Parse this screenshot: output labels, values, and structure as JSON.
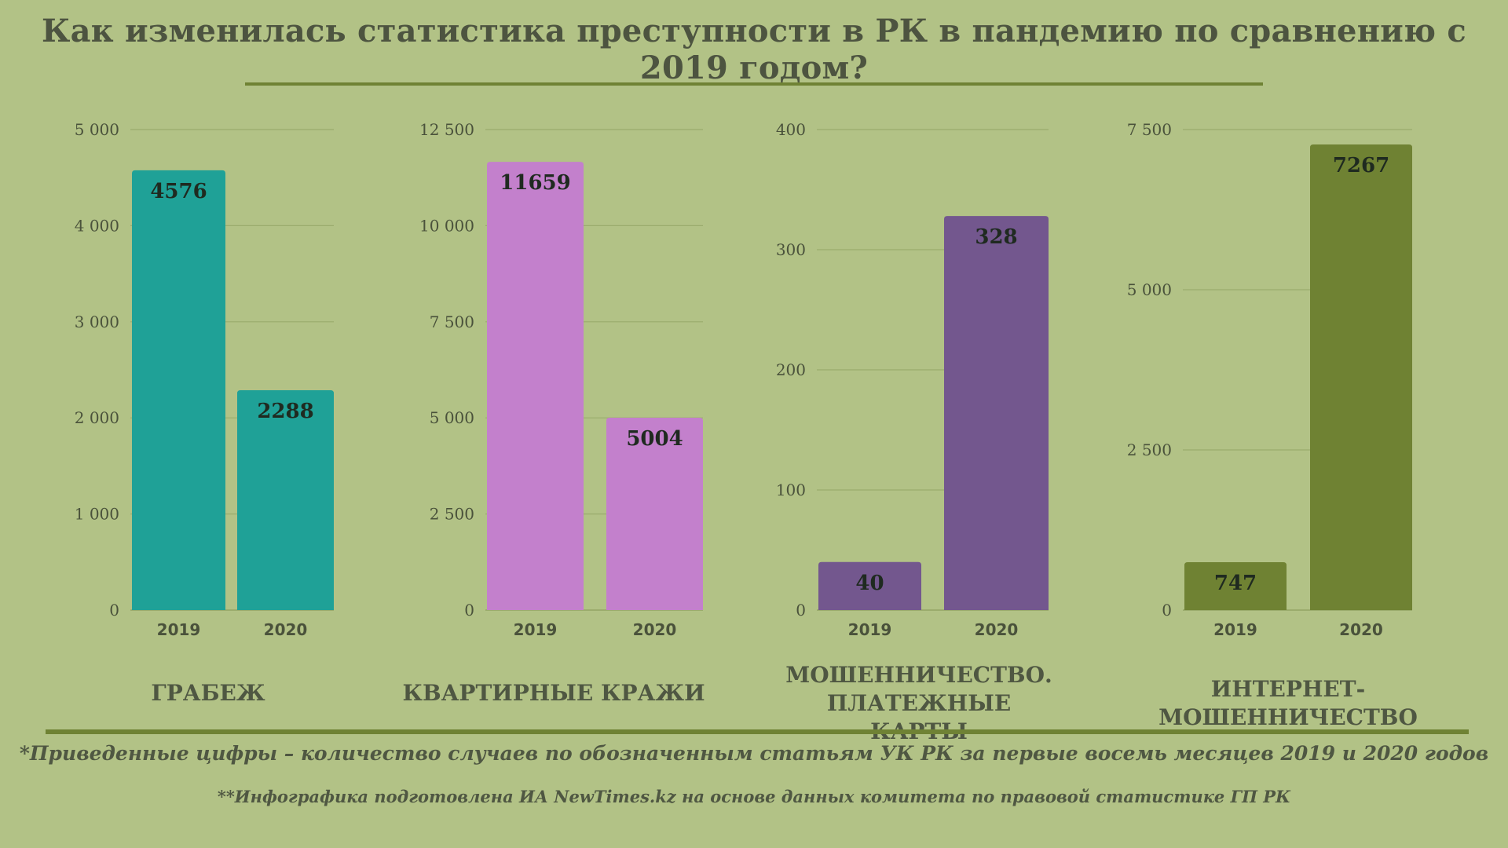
{
  "title": "Как изменилась статистика преступности в РК в пандемию по сравнению с 2019 годом?",
  "footnote_1": "*Приведенные цифры – количество случаев по обозначенным статьям УК РК за первые восемь месяцев 2019 и 2020 годов",
  "footnote_2": "**Инфографика подготовлена ИА NewTimes.kz на основе данных комитета по правовой статистике ГП РК",
  "chart_data": [
    {
      "type": "bar",
      "title": "ГРАБЕЖ",
      "categories": [
        "2019",
        "2020"
      ],
      "values": [
        4576,
        2288
      ],
      "ylim": [
        0,
        5000
      ],
      "yticks": [
        0,
        1000,
        2000,
        3000,
        4000,
        5000
      ],
      "ytick_labels": [
        "0",
        "1 000",
        "2 000",
        "3 000",
        "4 000",
        "5 000"
      ],
      "color": "#1fa197",
      "grid": true
    },
    {
      "type": "bar",
      "title": "КВАРТИРНЫЕ КРАЖИ",
      "categories": [
        "2019",
        "2020"
      ],
      "values": [
        11659,
        5004
      ],
      "ylim": [
        0,
        12500
      ],
      "yticks": [
        0,
        2500,
        5000,
        7500,
        10000,
        12500
      ],
      "ytick_labels": [
        "0",
        "2 500",
        "5 000",
        "7 500",
        "10 000",
        "12 500"
      ],
      "color": "#c380cc",
      "grid": true
    },
    {
      "type": "bar",
      "title_lines": [
        "МОШЕННИЧЕСТВО.",
        "ПЛАТЕЖНЫЕ КАРТЫ"
      ],
      "categories": [
        "2019",
        "2020"
      ],
      "values": [
        40,
        328
      ],
      "ylim": [
        0,
        400
      ],
      "yticks": [
        0,
        100,
        200,
        300,
        400
      ],
      "ytick_labels": [
        "0",
        "100",
        "200",
        "300",
        "400"
      ],
      "color": "#73578e",
      "grid": true
    },
    {
      "type": "bar",
      "title": "ИНТЕРНЕТ-МОШЕННИЧЕСТВО",
      "categories": [
        "2019",
        "2020"
      ],
      "values": [
        747,
        7267
      ],
      "ylim": [
        0,
        7500
      ],
      "yticks": [
        0,
        2500,
        5000,
        7500
      ],
      "ytick_labels": [
        "0",
        "2 500",
        "5 000",
        "7 500"
      ],
      "color": "#6f8233",
      "grid": true
    }
  ]
}
